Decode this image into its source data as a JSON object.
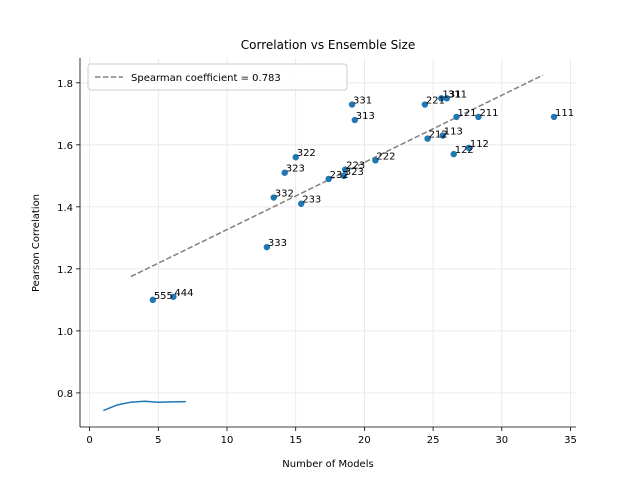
{
  "chart_data": {
    "type": "scatter",
    "title": "Correlation vs Ensemble Size",
    "xlabel": "Number of Models",
    "ylabel": "Pearson Correlation",
    "xlim": [
      -0.7,
      35.4
    ],
    "ylim": [
      0.69,
      1.88
    ],
    "xticks": [
      0,
      5,
      10,
      15,
      20,
      25,
      30,
      35
    ],
    "yticks": [
      0.8,
      1.0,
      1.2,
      1.4,
      1.6,
      1.8
    ],
    "grid": true,
    "legend_position": "top-left",
    "legend": [
      {
        "label": "Spearman coefficient = 0.783",
        "style": "dashed",
        "color": "#808080"
      }
    ],
    "points": [
      {
        "label": "555",
        "x": 4.6,
        "y": 1.1
      },
      {
        "label": "444",
        "x": 6.1,
        "y": 1.11
      },
      {
        "label": "333",
        "x": 12.9,
        "y": 1.27
      },
      {
        "label": "332",
        "x": 13.4,
        "y": 1.43
      },
      {
        "label": "233",
        "x": 15.4,
        "y": 1.41
      },
      {
        "label": "323",
        "x": 14.2,
        "y": 1.51
      },
      {
        "label": "322",
        "x": 15.0,
        "y": 1.56
      },
      {
        "label": "232",
        "x": 17.4,
        "y": 1.49
      },
      {
        "label": "323",
        "x": 18.5,
        "y": 1.5
      },
      {
        "label": "223",
        "x": 18.6,
        "y": 1.52
      },
      {
        "label": "222",
        "x": 20.8,
        "y": 1.55
      },
      {
        "label": "331",
        "x": 19.1,
        "y": 1.73
      },
      {
        "label": "313",
        "x": 19.3,
        "y": 1.68
      },
      {
        "label": "212",
        "x": 24.6,
        "y": 1.62
      },
      {
        "label": "113",
        "x": 25.7,
        "y": 1.63
      },
      {
        "label": "221",
        "x": 24.4,
        "y": 1.73
      },
      {
        "label": "131",
        "x": 25.6,
        "y": 1.75
      },
      {
        "label": "311",
        "x": 26.0,
        "y": 1.75
      },
      {
        "label": "121",
        "x": 26.7,
        "y": 1.69
      },
      {
        "label": "211",
        "x": 28.3,
        "y": 1.69
      },
      {
        "label": "122",
        "x": 26.5,
        "y": 1.57
      },
      {
        "label": "112",
        "x": 27.6,
        "y": 1.59
      },
      {
        "label": "111",
        "x": 33.8,
        "y": 1.69
      }
    ],
    "trend_line": {
      "x": [
        3.0,
        33.0
      ],
      "y": [
        1.175,
        1.825
      ]
    },
    "curve": {
      "x": [
        1,
        2,
        3,
        4,
        5,
        6,
        7
      ],
      "y": [
        0.743,
        0.761,
        0.77,
        0.773,
        0.77,
        0.771,
        0.772
      ]
    },
    "colors": {
      "points": "#1f77b4",
      "curve": "#1f77b4",
      "trend": "#808080",
      "grid": "#e6e6e6"
    }
  }
}
